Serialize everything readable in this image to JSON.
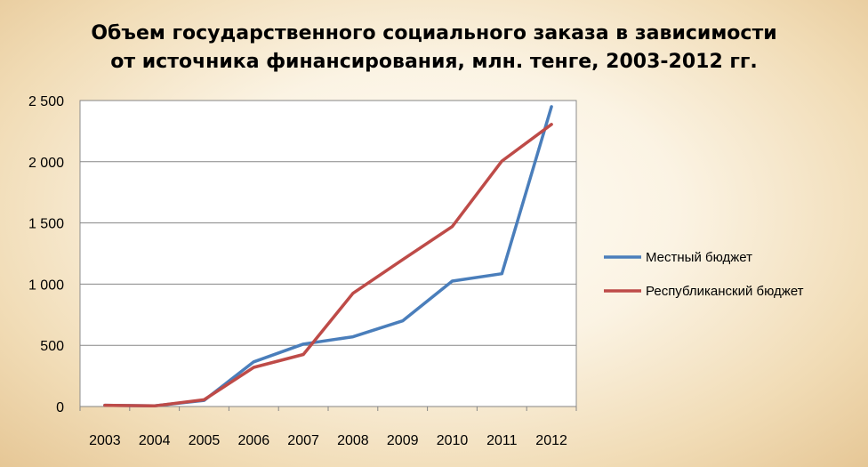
{
  "chart_data": {
    "type": "line",
    "title_lines": [
      "Объем государственного социального заказа в зависимости",
      "от источника финансирования, млн. тенге, 2003-2012 гг."
    ],
    "x": [
      "2003",
      "2004",
      "2005",
      "2006",
      "2007",
      "2008",
      "2009",
      "2010",
      "2011",
      "2012"
    ],
    "y_ticks": [
      {
        "value": 0,
        "label": "0"
      },
      {
        "value": 500,
        "label": "500"
      },
      {
        "value": 1000,
        "label": "1 000"
      },
      {
        "value": 1500,
        "label": "1 500"
      },
      {
        "value": 2000,
        "label": "2 000"
      },
      {
        "value": 2500,
        "label": "2 500"
      }
    ],
    "ylim": [
      0,
      2500
    ],
    "grid": "horizontal",
    "legend_position": "right",
    "series": [
      {
        "name": "Местный бюджет",
        "color": "#4a7ebb",
        "values": [
          10,
          5,
          50,
          365,
          510,
          570,
          700,
          1025,
          1085,
          2450
        ]
      },
      {
        "name": "Республиканский бюджет",
        "color": "#be4b48",
        "values": [
          10,
          5,
          55,
          320,
          425,
          925,
          1200,
          1470,
          2005,
          2305
        ]
      }
    ]
  }
}
